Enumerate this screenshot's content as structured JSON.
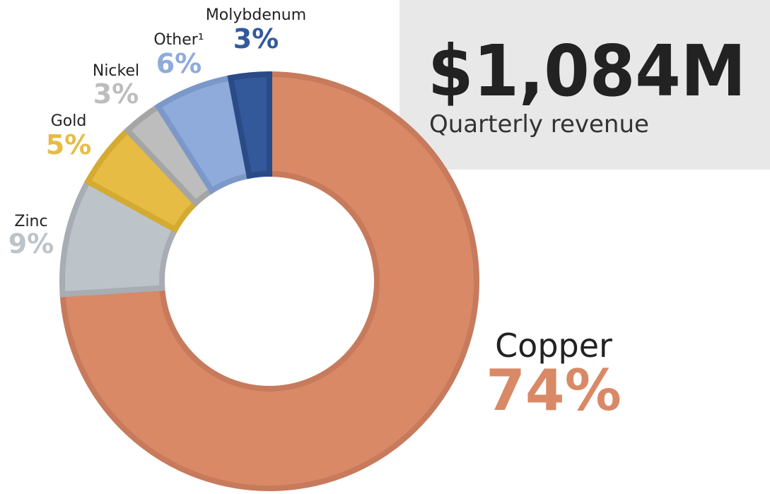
{
  "chart_data": {
    "type": "donut",
    "headline": "$1,084M",
    "subtitle": "Quarterly revenue",
    "categories": [
      "Copper",
      "Zinc",
      "Gold",
      "Nickel",
      "Other¹",
      "Molybdenum"
    ],
    "values": [
      74,
      9,
      5,
      3,
      6,
      3
    ],
    "value_labels": [
      "74%",
      "9%",
      "5%",
      "3%",
      "6%",
      "3%"
    ],
    "colors": [
      "#d98966",
      "#bcc3c9",
      "#e6bc44",
      "#bcbdbc",
      "#8eabdb",
      "#33599a"
    ],
    "stroke_colors": [
      "#c77a5c",
      "#a7adb2",
      "#d4aa30",
      "#a5a5a5",
      "#7c98c8",
      "#2a4b85"
    ]
  }
}
